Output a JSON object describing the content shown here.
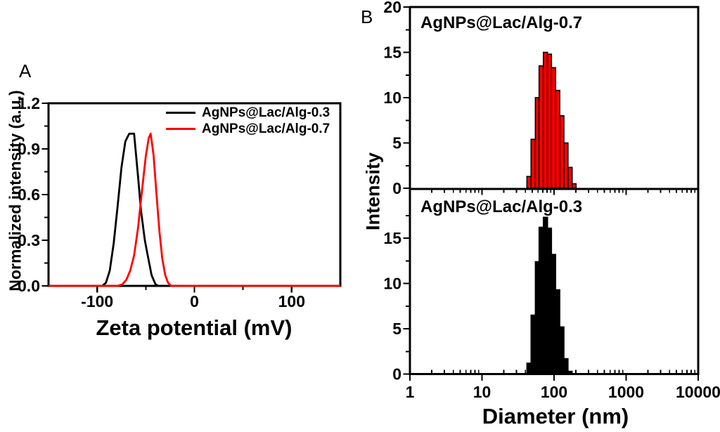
{
  "figure": {
    "panel_a_letter": "A",
    "panel_b_letter": "B"
  },
  "colors": {
    "black": "#000000",
    "red": "#ff0000",
    "background": "#ffffff"
  },
  "chart_data": [
    {
      "type": "line",
      "panel": "A",
      "xlabel": "Zeta potential (mV)",
      "ylabel": "Normalized intensity (a.u.)",
      "xlim": [
        -150,
        150
      ],
      "ylim": [
        0,
        1.2
      ],
      "xticks": [
        -100,
        0,
        100
      ],
      "xtick_labels": [
        "-100",
        "0",
        "100"
      ],
      "xminor": [
        -50,
        50
      ],
      "yticks": [
        0,
        0.3,
        0.6,
        0.9,
        1.2
      ],
      "ytick_labels": [
        "0.0",
        "0.3",
        "0.6",
        "0.9",
        "1.2"
      ],
      "yminor": [
        0.15,
        0.45,
        0.75,
        1.05
      ],
      "grid": false,
      "legend_position": "top-right-inside",
      "legend": [
        {
          "label": "AgNPs@Lac/Alg-0.3",
          "color": "#000000"
        },
        {
          "label": "AgNPs@Lac/Alg-0.7",
          "color": "#ff0000"
        }
      ],
      "series": [
        {
          "name": "AgNPs@Lac/Alg-0.3",
          "color": "#000000",
          "points": [
            [
              -150,
              0
            ],
            [
              -95,
              0
            ],
            [
              -91,
              0.02
            ],
            [
              -87,
              0.1
            ],
            [
              -83,
              0.28
            ],
            [
              -79,
              0.52
            ],
            [
              -75,
              0.78
            ],
            [
              -71,
              0.95
            ],
            [
              -67,
              1.0
            ],
            [
              -62,
              1.0
            ],
            [
              -58,
              0.72
            ],
            [
              -55,
              0.5
            ],
            [
              -51,
              0.3
            ],
            [
              -48,
              0.2
            ],
            [
              -44,
              0.07
            ],
            [
              -40,
              0.01
            ],
            [
              -37,
              0
            ],
            [
              150,
              0
            ]
          ],
          "peak_mv": -64
        },
        {
          "name": "AgNPs@Lac/Alg-0.7",
          "color": "#ff0000",
          "points": [
            [
              -150,
              0
            ],
            [
              -79,
              0
            ],
            [
              -74,
              0.01
            ],
            [
              -70,
              0.04
            ],
            [
              -66,
              0.1
            ],
            [
              -62,
              0.2
            ],
            [
              -58,
              0.38
            ],
            [
              -54,
              0.62
            ],
            [
              -50,
              0.85
            ],
            [
              -47,
              0.97
            ],
            [
              -45,
              1.0
            ],
            [
              -42,
              0.86
            ],
            [
              -39,
              0.6
            ],
            [
              -36,
              0.36
            ],
            [
              -33,
              0.18
            ],
            [
              -30,
              0.07
            ],
            [
              -27,
              0.02
            ],
            [
              -24,
              0
            ],
            [
              150,
              0
            ]
          ],
          "peak_mv": -45
        }
      ]
    },
    {
      "type": "bar",
      "panel": "B",
      "xlabel": "Diameter (nm)",
      "ylabel": "Intensity",
      "xscale": "log",
      "xlim": [
        1,
        10000
      ],
      "xticks": [
        1,
        10,
        100,
        1000,
        10000
      ],
      "xtick_labels": [
        "1",
        "10",
        "100",
        "1000",
        "10000"
      ],
      "grid": false,
      "subpanels": [
        {
          "annotation": "AgNPs@Lac/Alg-0.7",
          "bar_color": "#ff0000",
          "ylim": [
            0,
            20
          ],
          "yticks": [
            20,
            15,
            10,
            5,
            0
          ],
          "ytick_labels": [
            "20",
            "15",
            "10",
            "5",
            "0"
          ],
          "yminor": [
            17.5,
            12.5,
            7.5,
            2.5
          ],
          "bin_edges_nm": [
            42,
            48,
            55,
            62,
            71,
            81,
            92,
            105,
            120,
            137,
            156,
            178,
            202
          ],
          "values": [
            1.3,
            5.4,
            10.0,
            13.5,
            15.0,
            14.8,
            13.3,
            10.8,
            8.0,
            5.0,
            2.3,
            0.5
          ]
        },
        {
          "annotation": "AgNPs@Lac/Alg-0.3",
          "bar_color": "#000000",
          "ylim": [
            0,
            20
          ],
          "yticks": [
            15,
            10,
            5,
            0
          ],
          "ytick_labels": [
            "15",
            "10",
            "5",
            "0"
          ],
          "yminor": [
            17.5,
            12.5,
            7.5,
            2.5
          ],
          "bin_edges_nm": [
            42,
            48,
            55,
            62,
            71,
            81,
            92,
            105,
            120,
            137,
            156,
            178
          ],
          "values": [
            1.2,
            6.5,
            12.4,
            16.2,
            17.3,
            16.1,
            13.2,
            9.3,
            5.2,
            1.7,
            0.3
          ]
        }
      ]
    }
  ]
}
